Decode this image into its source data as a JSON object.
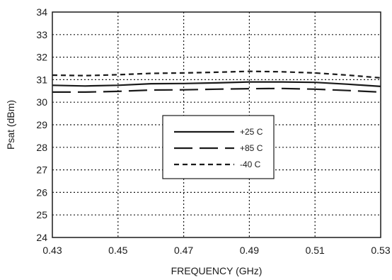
{
  "chart_data": {
    "type": "line",
    "title": "",
    "xlabel": "FREQUENCY (GHz)",
    "ylabel": "Psat (dBm)",
    "xlim": [
      0.43,
      0.53
    ],
    "ylim": [
      24,
      34
    ],
    "x_ticks": [
      "0.43",
      "0.45",
      "0.47",
      "0.49",
      "0.51",
      "0.53"
    ],
    "y_ticks": [
      "24",
      "25",
      "26",
      "27",
      "28",
      "29",
      "30",
      "31",
      "32",
      "33",
      "34"
    ],
    "grid": "dotted",
    "legend_position": "center",
    "series": [
      {
        "name": "+25 C",
        "style": "solid",
        "x": [
          0.43,
          0.44,
          0.45,
          0.46,
          0.47,
          0.48,
          0.49,
          0.5,
          0.51,
          0.52,
          0.53
        ],
        "y": [
          30.75,
          30.72,
          30.75,
          30.82,
          30.83,
          30.86,
          30.9,
          30.9,
          30.88,
          30.8,
          30.7
        ]
      },
      {
        "name": "+85 C",
        "style": "long-dash",
        "x": [
          0.43,
          0.44,
          0.45,
          0.46,
          0.47,
          0.48,
          0.49,
          0.5,
          0.51,
          0.52,
          0.53
        ],
        "y": [
          30.45,
          30.45,
          30.48,
          30.54,
          30.55,
          30.58,
          30.6,
          30.61,
          30.58,
          30.52,
          30.45
        ]
      },
      {
        "name": "-40 C",
        "style": "short-dash",
        "x": [
          0.43,
          0.44,
          0.45,
          0.46,
          0.47,
          0.48,
          0.49,
          0.5,
          0.51,
          0.52,
          0.53
        ],
        "y": [
          31.2,
          31.18,
          31.22,
          31.28,
          31.3,
          31.33,
          31.37,
          31.35,
          31.3,
          31.2,
          31.08
        ]
      }
    ]
  },
  "colors": {
    "line": "#1a1a1a",
    "grid": "#1a1a1a",
    "background": "#ffffff"
  }
}
